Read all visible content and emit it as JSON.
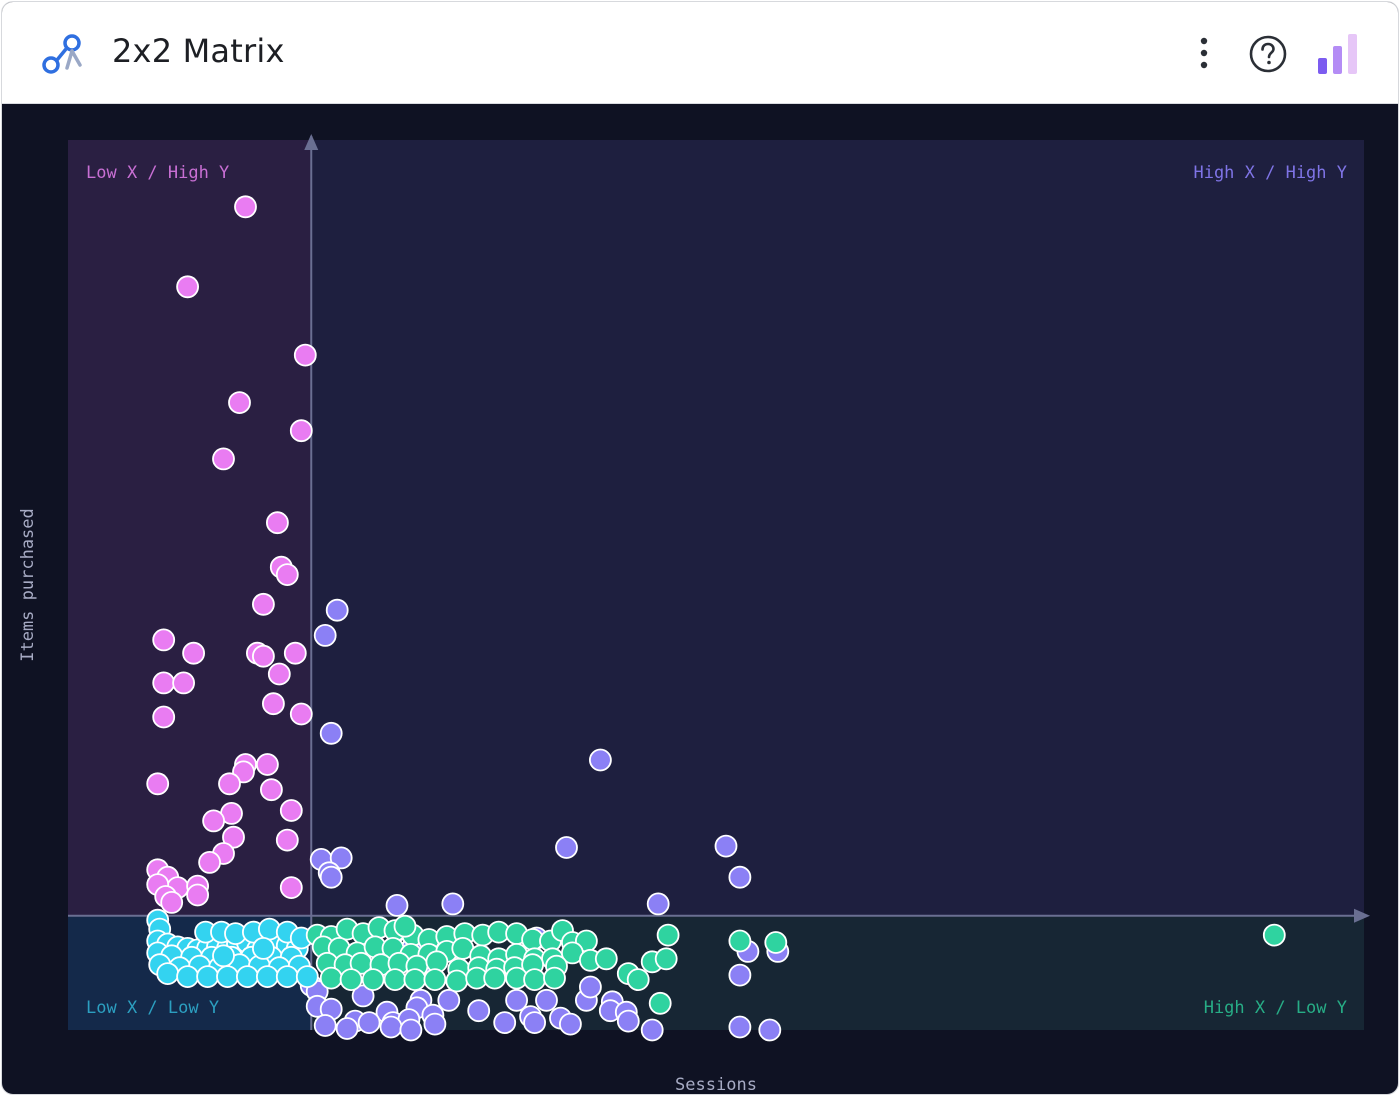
{
  "header": {
    "title": "2x2 Matrix",
    "logo_icon": "connection-nodes-icon",
    "menu_icon": "more-vertical-icon",
    "help_icon": "help-circle-icon",
    "chart_icon": "bar-chart-icon"
  },
  "colors": {
    "low_x_high_y": "#e97cf2",
    "high_x_high_y": "#8b80f5",
    "low_x_low_y": "#33d3f0",
    "high_x_low_y": "#2fd3a0",
    "background": "#0f1223"
  },
  "chart_data": {
    "type": "scatter",
    "xlabel": "Sessions",
    "ylabel": "Items purchased",
    "xlim": [
      0,
      65
    ],
    "ylim": [
      0,
      60
    ],
    "x_threshold": 12.2,
    "y_threshold": 7.7,
    "quadrants": {
      "low_x_high_y": "Low X / High Y",
      "high_x_high_y": "High X / High Y",
      "low_x_low_y": "Low X / Low Y",
      "high_x_low_y": "High X / Low Y"
    },
    "series": [
      {
        "name": "Low X / High Y",
        "points": [
          [
            8.9,
            55.5
          ],
          [
            6.0,
            50.1
          ],
          [
            11.9,
            45.5
          ],
          [
            8.6,
            42.3
          ],
          [
            11.7,
            40.4
          ],
          [
            7.8,
            38.5
          ],
          [
            10.5,
            34.2
          ],
          [
            10.7,
            31.2
          ],
          [
            11.0,
            30.7
          ],
          [
            9.8,
            28.7
          ],
          [
            4.8,
            26.3
          ],
          [
            6.3,
            25.4
          ],
          [
            9.5,
            25.4
          ],
          [
            9.8,
            25.2
          ],
          [
            11.4,
            25.4
          ],
          [
            10.6,
            24.0
          ],
          [
            4.8,
            23.4
          ],
          [
            5.8,
            23.4
          ],
          [
            10.3,
            22.0
          ],
          [
            4.8,
            21.1
          ],
          [
            11.7,
            21.3
          ],
          [
            8.9,
            17.9
          ],
          [
            10.0,
            17.9
          ],
          [
            8.8,
            17.4
          ],
          [
            4.5,
            16.6
          ],
          [
            8.1,
            16.6
          ],
          [
            10.2,
            16.2
          ],
          [
            8.2,
            14.6
          ],
          [
            11.2,
            14.8
          ],
          [
            7.3,
            14.1
          ],
          [
            8.3,
            13.0
          ],
          [
            11.0,
            12.8
          ],
          [
            7.8,
            11.9
          ],
          [
            7.1,
            11.3
          ],
          [
            4.5,
            10.8
          ],
          [
            5.0,
            10.3
          ],
          [
            5.5,
            9.6
          ],
          [
            6.5,
            9.7
          ],
          [
            4.5,
            9.8
          ],
          [
            11.2,
            9.6
          ],
          [
            4.9,
            9.0
          ],
          [
            5.2,
            8.6
          ],
          [
            6.5,
            9.1
          ]
        ]
      },
      {
        "name": "High X / High Y",
        "points": [
          [
            13.5,
            28.3
          ],
          [
            12.9,
            26.6
          ],
          [
            13.2,
            20.0
          ],
          [
            26.7,
            18.2
          ],
          [
            25.0,
            12.3
          ],
          [
            33.0,
            12.4
          ],
          [
            33.7,
            10.3
          ],
          [
            12.7,
            11.5
          ],
          [
            13.7,
            11.6
          ],
          [
            13.1,
            10.6
          ],
          [
            13.2,
            10.3
          ],
          [
            16.5,
            8.4
          ],
          [
            19.3,
            8.5
          ],
          [
            29.6,
            8.5
          ],
          [
            16.5,
            6.7
          ],
          [
            17.3,
            5.6
          ],
          [
            13.1,
            4.6
          ],
          [
            13.6,
            3.8
          ],
          [
            14.0,
            4.0
          ],
          [
            17.7,
            4.4
          ],
          [
            23.5,
            6.2
          ],
          [
            34.1,
            5.3
          ],
          [
            35.6,
            5.3
          ],
          [
            33.7,
            3.7
          ],
          [
            12.2,
            3.0
          ],
          [
            12.5,
            2.6
          ],
          [
            14.8,
            2.3
          ],
          [
            17.7,
            2.0
          ],
          [
            19.1,
            2.0
          ],
          [
            17.5,
            1.5
          ],
          [
            22.5,
            2.0
          ],
          [
            24.0,
            2.0
          ],
          [
            26.0,
            2.0
          ],
          [
            27.3,
            1.9
          ],
          [
            26.2,
            2.9
          ],
          [
            27.2,
            1.3
          ],
          [
            20.6,
            1.3
          ],
          [
            18.3,
            1.0
          ],
          [
            16.0,
            1.2
          ],
          [
            12.5,
            1.6
          ],
          [
            13.2,
            1.4
          ],
          [
            14.4,
            0.6
          ],
          [
            15.1,
            0.5
          ],
          [
            16.3,
            0.5
          ],
          [
            17.1,
            0.7
          ],
          [
            23.2,
            0.9
          ],
          [
            23.4,
            0.5
          ],
          [
            24.7,
            0.8
          ],
          [
            28.0,
            1.2
          ],
          [
            28.1,
            0.6
          ],
          [
            29.3,
            0.0
          ],
          [
            33.7,
            0.2
          ],
          [
            35.2,
            0.0
          ],
          [
            18.4,
            0.4
          ],
          [
            21.9,
            0.5
          ],
          [
            25.2,
            0.4
          ],
          [
            12.9,
            0.3
          ],
          [
            14.0,
            0.1
          ],
          [
            16.2,
            0.2
          ],
          [
            17.2,
            0.0
          ]
        ]
      },
      {
        "name": "Low X / Low Y",
        "points": [
          [
            4.5,
            7.4
          ],
          [
            4.6,
            6.8
          ],
          [
            4.5,
            6.0
          ],
          [
            5.0,
            5.8
          ],
          [
            5.5,
            5.6
          ],
          [
            6.0,
            5.5
          ],
          [
            6.5,
            5.4
          ],
          [
            7.0,
            5.5
          ],
          [
            7.5,
            5.6
          ],
          [
            8.0,
            5.5
          ],
          [
            8.5,
            5.8
          ],
          [
            9.0,
            5.9
          ],
          [
            9.5,
            5.4
          ],
          [
            10.0,
            5.5
          ],
          [
            10.5,
            5.6
          ],
          [
            11.0,
            5.7
          ],
          [
            11.5,
            5.5
          ],
          [
            4.5,
            5.2
          ],
          [
            5.2,
            5.0
          ],
          [
            6.2,
            4.9
          ],
          [
            7.2,
            4.9
          ],
          [
            8.2,
            4.9
          ],
          [
            9.2,
            4.9
          ],
          [
            10.2,
            4.9
          ],
          [
            11.2,
            4.9
          ],
          [
            4.6,
            4.4
          ],
          [
            5.6,
            4.2
          ],
          [
            6.6,
            4.3
          ],
          [
            7.6,
            4.2
          ],
          [
            8.6,
            4.4
          ],
          [
            9.6,
            4.3
          ],
          [
            10.6,
            4.2
          ],
          [
            11.6,
            4.3
          ],
          [
            5.0,
            3.8
          ],
          [
            6.0,
            3.6
          ],
          [
            7.0,
            3.6
          ],
          [
            8.0,
            3.6
          ],
          [
            9.0,
            3.6
          ],
          [
            10.0,
            3.6
          ],
          [
            11.0,
            3.6
          ],
          [
            12.0,
            3.6
          ],
          [
            6.9,
            6.6
          ],
          [
            7.7,
            6.6
          ],
          [
            8.4,
            6.5
          ],
          [
            9.3,
            6.6
          ],
          [
            10.1,
            6.8
          ],
          [
            11.0,
            6.6
          ],
          [
            11.7,
            6.2
          ],
          [
            7.8,
            5.0
          ],
          [
            9.8,
            5.5
          ]
        ]
      },
      {
        "name": "High X / Low Y",
        "points": [
          [
            12.5,
            6.4
          ],
          [
            13.2,
            6.3
          ],
          [
            14.0,
            6.8
          ],
          [
            14.8,
            6.5
          ],
          [
            15.6,
            6.9
          ],
          [
            16.4,
            6.7
          ],
          [
            17.3,
            6.4
          ],
          [
            18.1,
            6.1
          ],
          [
            19.0,
            6.3
          ],
          [
            19.9,
            6.5
          ],
          [
            20.8,
            6.4
          ],
          [
            21.6,
            6.6
          ],
          [
            22.5,
            6.5
          ],
          [
            23.3,
            6.1
          ],
          [
            24.2,
            6.0
          ],
          [
            24.8,
            6.7
          ],
          [
            25.3,
            5.9
          ],
          [
            26.0,
            6.0
          ],
          [
            12.8,
            5.6
          ],
          [
            13.6,
            5.5
          ],
          [
            14.5,
            5.2
          ],
          [
            15.4,
            5.6
          ],
          [
            16.3,
            5.5
          ],
          [
            17.2,
            5.1
          ],
          [
            18.1,
            5.1
          ],
          [
            19.0,
            5.3
          ],
          [
            19.8,
            5.5
          ],
          [
            20.7,
            5.0
          ],
          [
            21.6,
            4.8
          ],
          [
            22.5,
            5.1
          ],
          [
            23.4,
            4.8
          ],
          [
            24.3,
            4.8
          ],
          [
            25.3,
            5.2
          ],
          [
            26.2,
            4.7
          ],
          [
            13.0,
            4.5
          ],
          [
            13.9,
            4.4
          ],
          [
            14.7,
            4.5
          ],
          [
            15.7,
            4.4
          ],
          [
            16.6,
            4.5
          ],
          [
            17.5,
            4.3
          ],
          [
            18.5,
            4.6
          ],
          [
            19.6,
            4.1
          ],
          [
            20.6,
            4.2
          ],
          [
            21.5,
            4.1
          ],
          [
            22.4,
            4.2
          ],
          [
            23.3,
            4.4
          ],
          [
            24.5,
            4.3
          ],
          [
            13.2,
            3.5
          ],
          [
            14.2,
            3.4
          ],
          [
            15.3,
            3.4
          ],
          [
            16.4,
            3.4
          ],
          [
            17.4,
            3.4
          ],
          [
            18.4,
            3.4
          ],
          [
            19.5,
            3.3
          ],
          [
            20.5,
            3.5
          ],
          [
            21.4,
            3.5
          ],
          [
            22.5,
            3.5
          ],
          [
            23.4,
            3.4
          ],
          [
            24.4,
            3.5
          ],
          [
            16.9,
            7.0
          ],
          [
            27.0,
            4.8
          ],
          [
            28.1,
            3.8
          ],
          [
            28.6,
            3.4
          ],
          [
            29.3,
            4.6
          ],
          [
            30.1,
            6.4
          ],
          [
            30.0,
            4.8
          ],
          [
            33.7,
            6.0
          ],
          [
            35.5,
            5.9
          ],
          [
            60.5,
            6.4
          ],
          [
            29.7,
            1.8
          ]
        ]
      }
    ]
  }
}
